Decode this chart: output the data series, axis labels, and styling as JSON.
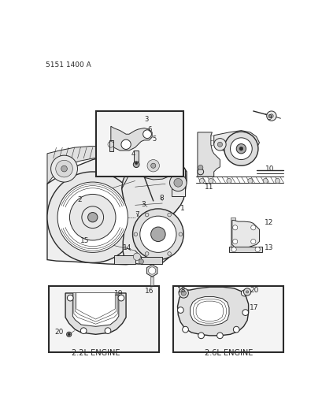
{
  "part_number": "5151 1400 A",
  "bg_color": "#ffffff",
  "line_color": "#2a2a2a",
  "fig_width": 4.1,
  "fig_height": 5.33,
  "dpi": 100,
  "lw_hair": 0.4,
  "lw_thin": 0.7,
  "lw_med": 1.0,
  "lw_thick": 1.5,
  "gray_light": "#d8d8d8",
  "gray_mid": "#aaaaaa",
  "gray_dark": "#777777",
  "white": "#ffffff",
  "off_white": "#f4f4f4"
}
